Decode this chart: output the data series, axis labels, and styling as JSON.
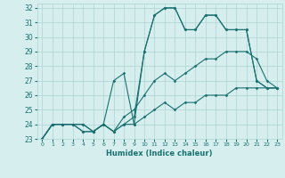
{
  "xlabel": "Humidex (Indice chaleur)",
  "xlim": [
    -0.5,
    23.5
  ],
  "ylim": [
    23,
    32.3
  ],
  "yticks": [
    23,
    24,
    25,
    26,
    27,
    28,
    29,
    30,
    31,
    32
  ],
  "xticks": [
    0,
    1,
    2,
    3,
    4,
    5,
    6,
    7,
    8,
    9,
    10,
    11,
    12,
    13,
    14,
    15,
    16,
    17,
    18,
    19,
    20,
    21,
    22,
    23
  ],
  "bg_color": "#d6eeee",
  "grid_color": "#aed4d4",
  "line_color": "#1a7070",
  "series": [
    {
      "x": [
        0,
        1,
        2,
        3,
        4,
        5,
        6,
        7,
        8,
        9,
        10,
        11,
        12,
        13,
        14,
        15,
        16,
        17,
        18,
        19,
        20,
        21,
        22,
        23
      ],
      "y": [
        23,
        24,
        24,
        24,
        24,
        23.5,
        24,
        23.5,
        24,
        24,
        24.5,
        25,
        25.5,
        25,
        25.5,
        25.5,
        26,
        26,
        26,
        26.5,
        26.5,
        26.5,
        26.5,
        26.5
      ]
    },
    {
      "x": [
        0,
        1,
        2,
        3,
        4,
        5,
        6,
        7,
        8,
        9,
        10,
        11,
        12,
        13,
        14,
        15,
        16,
        17,
        18,
        19,
        20,
        21,
        22,
        23
      ],
      "y": [
        23,
        24,
        24,
        24,
        24,
        23.5,
        24,
        23.5,
        24.5,
        25,
        26,
        27,
        27.5,
        27,
        27.5,
        28,
        28.5,
        28.5,
        29,
        29,
        29,
        28.5,
        27,
        26.5
      ]
    },
    {
      "x": [
        0,
        1,
        2,
        3,
        4,
        5,
        6,
        7,
        8,
        9,
        10,
        11,
        12,
        13,
        14,
        15,
        16,
        17,
        18,
        19,
        20,
        21,
        22,
        23
      ],
      "y": [
        23,
        24,
        24,
        24,
        23.5,
        23.5,
        24,
        27,
        27.5,
        24,
        29,
        31.5,
        32,
        32,
        30.5,
        30.5,
        31.5,
        31.5,
        30.5,
        30.5,
        30.5,
        27,
        26.5,
        26.5
      ]
    },
    {
      "x": [
        0,
        1,
        2,
        3,
        4,
        5,
        6,
        7,
        8,
        9,
        10,
        11,
        12,
        13,
        14,
        15,
        16,
        17,
        18,
        19,
        20,
        21,
        22,
        23
      ],
      "y": [
        23,
        24,
        24,
        24,
        23.5,
        23.5,
        24,
        23.5,
        24,
        24.5,
        29,
        31.5,
        32,
        32,
        30.5,
        30.5,
        31.5,
        31.5,
        30.5,
        30.5,
        30.5,
        27,
        26.5,
        26.5
      ]
    }
  ]
}
